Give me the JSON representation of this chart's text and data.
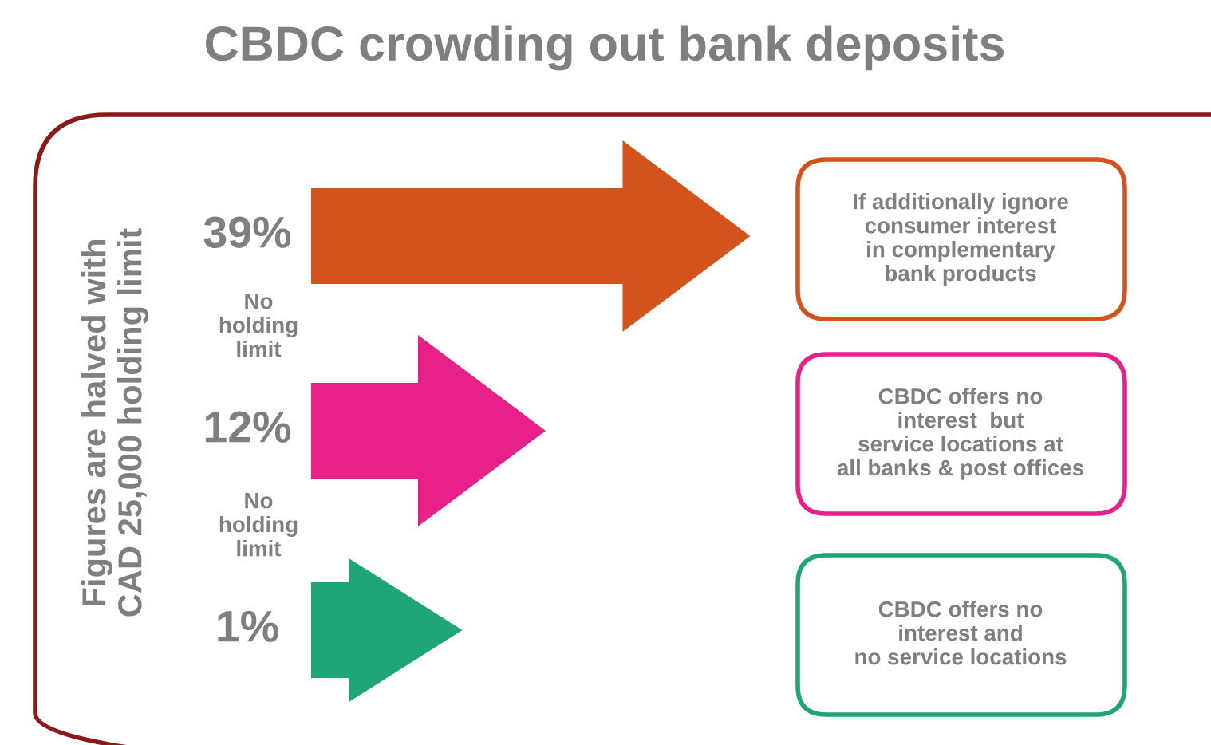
{
  "chart_data": {
    "type": "other",
    "title": "CBDC crowding out bank deposits",
    "ylabel": "Figures are halved with\nCAD 25,000 holding limit",
    "categories": [
      "If additionally ignore\nconsumer interest\nin complementary\nbank products",
      "CBDC offers no\ninterest  but\nservice locations at\nall banks & post offices",
      "CBDC offers no\ninterest and\nno service locations"
    ],
    "values": [
      39,
      12,
      1
    ],
    "value_labels": [
      "39%",
      "12%",
      "1%"
    ],
    "colors": [
      "#d2541c",
      "#e8208a",
      "#1fa57a"
    ],
    "annotations": [
      "No\nholding\nlimit",
      "No\nholding\nlimit"
    ]
  }
}
